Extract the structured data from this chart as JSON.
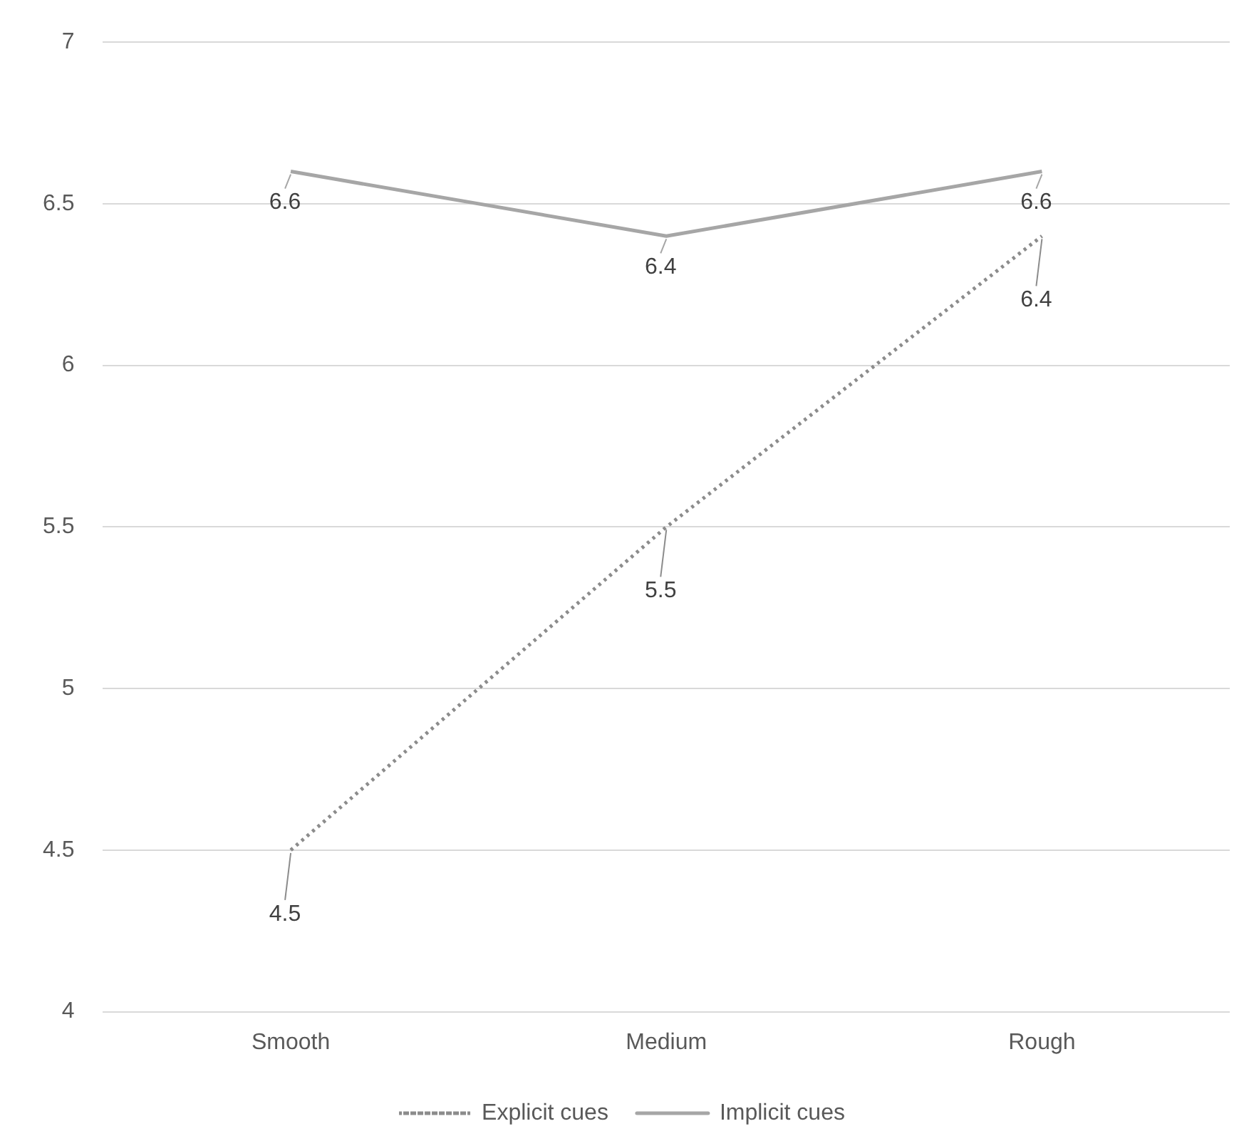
{
  "chart_data": {
    "type": "line",
    "categories": [
      "Smooth",
      "Medium",
      "Rough"
    ],
    "series": [
      {
        "name": "Explicit cues",
        "color": "#8c8c8c",
        "line_style": "dotted",
        "values": [
          4.5,
          5.5,
          6.4
        ]
      },
      {
        "name": "Implicit cues",
        "color": "#a6a6a6",
        "line_style": "solid",
        "values": [
          6.6,
          6.4,
          6.6
        ]
      }
    ],
    "ylim": [
      4,
      7
    ],
    "yticks": [
      4,
      4.5,
      5,
      5.5,
      6,
      6.5,
      7
    ],
    "grid": "y",
    "legend": "bottom",
    "marker": "none",
    "data_labels": true
  }
}
